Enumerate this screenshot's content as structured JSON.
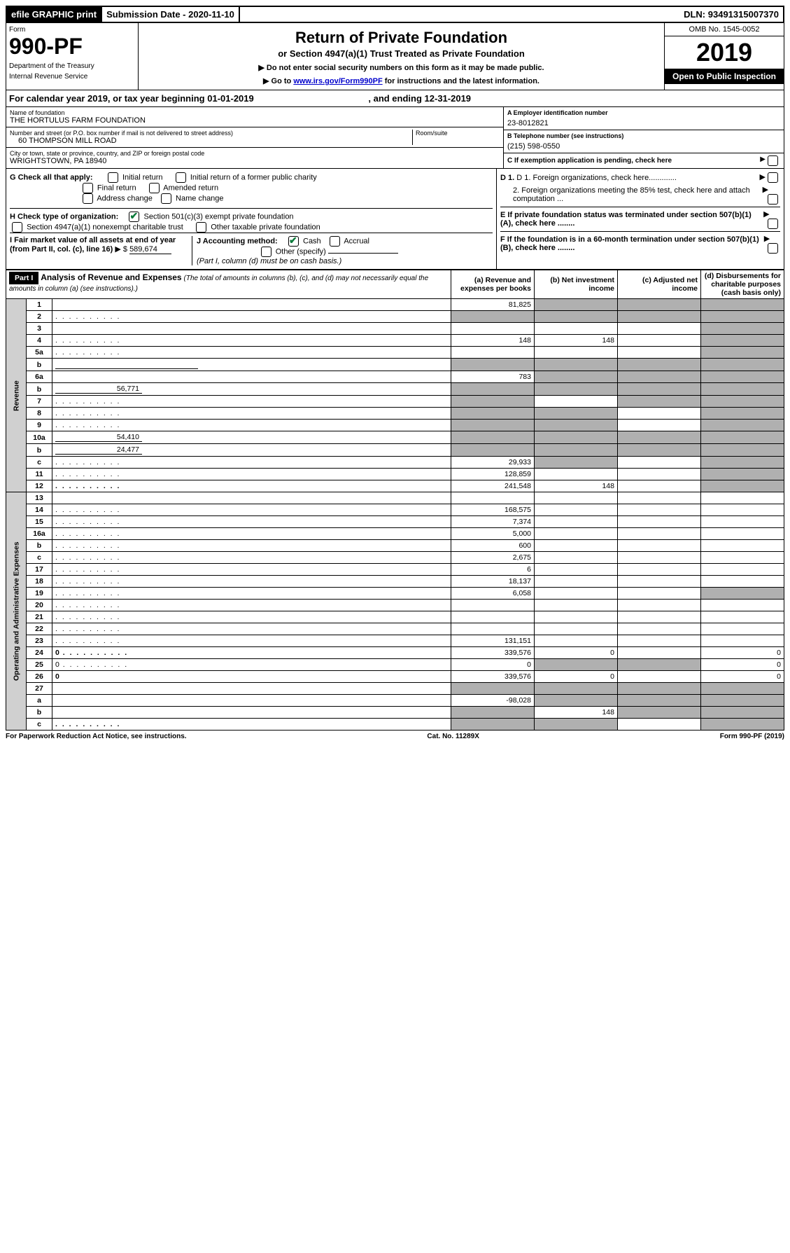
{
  "top": {
    "efile": "efile GRAPHIC print",
    "subdate_lbl": "Submission Date - ",
    "subdate": "2020-11-10",
    "dln_lbl": "DLN: ",
    "dln": "93491315007370"
  },
  "header": {
    "form_lbl": "Form",
    "form_num": "990-PF",
    "dept": "Department of the Treasury",
    "irs": "Internal Revenue Service",
    "title": "Return of Private Foundation",
    "sub": "or Section 4947(a)(1) Trust Treated as Private Foundation",
    "note1": "▶ Do not enter social security numbers on this form as it may be made public.",
    "note2_pre": "▶ Go to ",
    "note2_link": "www.irs.gov/Form990PF",
    "note2_post": " for instructions and the latest information.",
    "omb": "OMB No. 1545-0052",
    "year": "2019",
    "open": "Open to Public Inspection"
  },
  "cal": {
    "pre": "For calendar year 2019, or tax year beginning ",
    "begin": "01-01-2019",
    "mid": " , and ending ",
    "end": "12-31-2019"
  },
  "info": {
    "name_lbl": "Name of foundation",
    "name": "THE HORTULUS FARM FOUNDATION",
    "addr_lbl": "Number and street (or P.O. box number if mail is not delivered to street address)",
    "addr": "60 THOMPSON MILL ROAD",
    "room_lbl": "Room/suite",
    "city_lbl": "City or town, state or province, country, and ZIP or foreign postal code",
    "city": "WRIGHTSTOWN, PA  18940",
    "ein_lbl": "A Employer identification number",
    "ein": "23-8012821",
    "phone_lbl": "B Telephone number (see instructions)",
    "phone": "(215) 598-0550",
    "c": "C If exemption application is pending, check here",
    "d1": "D 1. Foreign organizations, check here.............",
    "d2": "2. Foreign organizations meeting the 85% test, check here and attach computation ...",
    "e": "E  If private foundation status was terminated under section 507(b)(1)(A), check here ........",
    "f": "F  If the foundation is in a 60-month termination under section 507(b)(1)(B), check here ........"
  },
  "checks": {
    "g_lbl": "G Check all that apply:",
    "g_items": [
      "Initial return",
      "Initial return of a former public charity",
      "Final return",
      "Amended return",
      "Address change",
      "Name change"
    ],
    "h_lbl": "H Check type of organization:",
    "h_items": [
      "Section 501(c)(3) exempt private foundation",
      "Section 4947(a)(1) nonexempt charitable trust",
      "Other taxable private foundation"
    ],
    "i_lbl": "I Fair market value of all assets at end of year (from Part II, col. (c), line 16)",
    "i_val": "589,674",
    "j_lbl": "J Accounting method:",
    "j_items": [
      "Cash",
      "Accrual",
      "Other (specify)"
    ],
    "j_note": "(Part I, column (d) must be on cash basis.)"
  },
  "part1": {
    "hdr": "Part I",
    "title": "Analysis of Revenue and Expenses",
    "note": "(The total of amounts in columns (b), (c), and (d) may not necessarily equal the amounts in column (a) (see instructions).)",
    "col_a": "(a)    Revenue and expenses per books",
    "col_b": "(b)   Net investment income",
    "col_c": "(c)   Adjusted net income",
    "col_d": "(d)   Disbursements for charitable purposes (cash basis only)",
    "rev_lbl": "Revenue",
    "exp_lbl": "Operating and Administrative Expenses"
  },
  "rows": [
    {
      "n": "1",
      "d": "",
      "a": "81,825",
      "b": "",
      "c": "",
      "shade_b": true,
      "shade_c": true,
      "shade_d": true
    },
    {
      "n": "2",
      "d": "",
      "a": "",
      "b": "",
      "c": "",
      "dots": true,
      "shade_a": true,
      "shade_b": true,
      "shade_c": true,
      "shade_d": true
    },
    {
      "n": "3",
      "d": "",
      "a": "",
      "b": "",
      "c": "",
      "shade_d": true
    },
    {
      "n": "4",
      "d": "",
      "a": "148",
      "b": "148",
      "c": "",
      "dots": true,
      "shade_d": true
    },
    {
      "n": "5a",
      "d": "",
      "a": "",
      "b": "",
      "c": "",
      "dots": true,
      "shade_d": true
    },
    {
      "n": "b",
      "d": "",
      "a": "",
      "b": "",
      "c": "",
      "inline_box": true,
      "shade_a": true,
      "shade_b": true,
      "shade_c": true,
      "shade_d": true
    },
    {
      "n": "6a",
      "d": "",
      "a": "783",
      "b": "",
      "c": "",
      "shade_b": true,
      "shade_c": true,
      "shade_d": true
    },
    {
      "n": "b",
      "d": "",
      "a": "",
      "b": "",
      "c": "",
      "inline_val": "56,771",
      "shade_a": true,
      "shade_b": true,
      "shade_c": true,
      "shade_d": true
    },
    {
      "n": "7",
      "d": "",
      "a": "",
      "b": "",
      "c": "",
      "dots": true,
      "shade_a": true,
      "shade_c": true,
      "shade_d": true
    },
    {
      "n": "8",
      "d": "",
      "a": "",
      "b": "",
      "c": "",
      "dots": true,
      "shade_a": true,
      "shade_b": true,
      "shade_d": true
    },
    {
      "n": "9",
      "d": "",
      "a": "",
      "b": "",
      "c": "",
      "dots": true,
      "shade_a": true,
      "shade_b": true,
      "shade_d": true
    },
    {
      "n": "10a",
      "d": "",
      "a": "",
      "b": "",
      "c": "",
      "inline_val": "54,410",
      "shade_a": true,
      "shade_b": true,
      "shade_c": true,
      "shade_d": true
    },
    {
      "n": "b",
      "d": "",
      "a": "",
      "b": "",
      "c": "",
      "inline_val": "24,477",
      "dots": true,
      "shade_a": true,
      "shade_b": true,
      "shade_c": true,
      "shade_d": true
    },
    {
      "n": "c",
      "d": "",
      "a": "29,933",
      "b": "",
      "c": "",
      "dots": true,
      "shade_b": true,
      "shade_d": true
    },
    {
      "n": "11",
      "d": "",
      "a": "128,859",
      "b": "",
      "c": "",
      "dots": true,
      "shade_d": true
    },
    {
      "n": "12",
      "d": "",
      "a": "241,548",
      "b": "148",
      "c": "",
      "dots": true,
      "bold": true,
      "shade_d": true
    },
    {
      "n": "13",
      "d": "",
      "a": "",
      "b": "",
      "c": "",
      "sec": "exp"
    },
    {
      "n": "14",
      "d": "",
      "a": "168,575",
      "b": "",
      "c": "",
      "dots": true
    },
    {
      "n": "15",
      "d": "",
      "a": "7,374",
      "b": "",
      "c": "",
      "dots": true
    },
    {
      "n": "16a",
      "d": "",
      "a": "5,000",
      "b": "",
      "c": "",
      "dots": true
    },
    {
      "n": "b",
      "d": "",
      "a": "600",
      "b": "",
      "c": "",
      "dots": true
    },
    {
      "n": "c",
      "d": "",
      "a": "2,675",
      "b": "",
      "c": "",
      "dots": true
    },
    {
      "n": "17",
      "d": "",
      "a": "6",
      "b": "",
      "c": "",
      "dots": true
    },
    {
      "n": "18",
      "d": "",
      "a": "18,137",
      "b": "",
      "c": "",
      "dots": true
    },
    {
      "n": "19",
      "d": "",
      "a": "6,058",
      "b": "",
      "c": "",
      "dots": true,
      "shade_d": true
    },
    {
      "n": "20",
      "d": "",
      "a": "",
      "b": "",
      "c": "",
      "dots": true
    },
    {
      "n": "21",
      "d": "",
      "a": "",
      "b": "",
      "c": "",
      "dots": true
    },
    {
      "n": "22",
      "d": "",
      "a": "",
      "b": "",
      "c": "",
      "dots": true
    },
    {
      "n": "23",
      "d": "",
      "a": "131,151",
      "b": "",
      "c": "",
      "dots": true
    },
    {
      "n": "24",
      "d": "0",
      "a": "339,576",
      "b": "0",
      "c": "",
      "dots": true,
      "bold": true
    },
    {
      "n": "25",
      "d": "0",
      "a": "0",
      "b": "",
      "c": "",
      "dots": true,
      "shade_b": true,
      "shade_c": true
    },
    {
      "n": "26",
      "d": "0",
      "a": "339,576",
      "b": "0",
      "c": "",
      "bold": true
    },
    {
      "n": "27",
      "d": "",
      "a": "",
      "b": "",
      "c": "",
      "shade_a": true,
      "shade_b": true,
      "shade_c": true,
      "shade_d": true
    },
    {
      "n": "a",
      "d": "",
      "a": "-98,028",
      "b": "",
      "c": "",
      "bold": true,
      "shade_b": true,
      "shade_c": true,
      "shade_d": true
    },
    {
      "n": "b",
      "d": "",
      "a": "",
      "b": "148",
      "c": "",
      "bold": true,
      "shade_a": true,
      "shade_c": true,
      "shade_d": true
    },
    {
      "n": "c",
      "d": "",
      "a": "",
      "b": "",
      "c": "",
      "bold": true,
      "dots": true,
      "shade_a": true,
      "shade_b": true,
      "shade_d": true
    }
  ],
  "footer": {
    "left": "For Paperwork Reduction Act Notice, see instructions.",
    "mid": "Cat. No. 11289X",
    "right": "Form 990-PF (2019)"
  }
}
